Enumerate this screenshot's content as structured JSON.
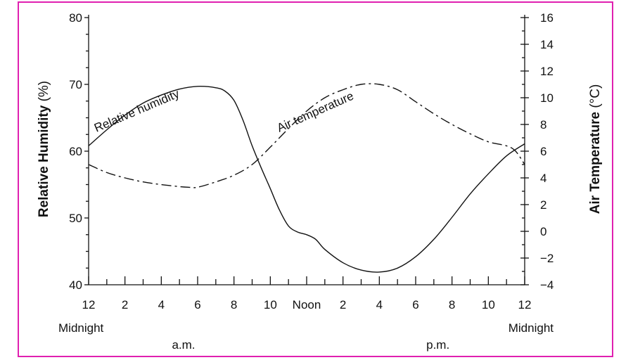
{
  "chart_data": {
    "type": "line",
    "yleft": {
      "label_bold": "Relative Humidity",
      "label_unit": "(%)",
      "ylim": [
        40,
        80
      ],
      "major_ticks": [
        40,
        50,
        60,
        70,
        80
      ],
      "minor_step": 2.5
    },
    "yright": {
      "label_bold": "Air Temperature",
      "label_unit": "(°C)",
      "ylim": [
        -4,
        16
      ],
      "ticks": [
        -4,
        -2,
        0,
        2,
        4,
        6,
        8,
        10,
        12,
        14,
        16
      ]
    },
    "x": {
      "xlim": [
        0,
        24
      ],
      "tick_labels": [
        {
          "x": 0,
          "text": "12"
        },
        {
          "x": 2,
          "text": "2"
        },
        {
          "x": 4,
          "text": "4"
        },
        {
          "x": 6,
          "text": "6"
        },
        {
          "x": 8,
          "text": "8"
        },
        {
          "x": 10,
          "text": "10"
        },
        {
          "x": 12,
          "text": "Noon"
        },
        {
          "x": 14,
          "text": "2"
        },
        {
          "x": 16,
          "text": "4"
        },
        {
          "x": 18,
          "text": "6"
        },
        {
          "x": 20,
          "text": "8"
        },
        {
          "x": 22,
          "text": "10"
        },
        {
          "x": 24,
          "text": "12"
        }
      ],
      "sub_labels": [
        {
          "x": 0,
          "text": "Midnight"
        },
        {
          "x": 24,
          "text": "Midnight"
        }
      ],
      "period_labels": [
        {
          "x": 6,
          "text": "a.m."
        },
        {
          "x": 20,
          "text": "p.m."
        }
      ]
    },
    "series": [
      {
        "name": "Relative humidity",
        "axis": "left",
        "style": "solid",
        "points": [
          [
            0,
            60.8
          ],
          [
            1,
            63.2
          ],
          [
            2,
            65.4
          ],
          [
            3,
            67.2
          ],
          [
            4,
            68.4
          ],
          [
            5,
            69.3
          ],
          [
            6,
            69.7
          ],
          [
            7,
            69.5
          ],
          [
            7.5,
            69
          ],
          [
            8,
            67.6
          ],
          [
            8.5,
            64.6
          ],
          [
            9,
            60.8
          ],
          [
            9.5,
            57.5
          ],
          [
            10,
            54.4
          ],
          [
            10.5,
            51.2
          ],
          [
            11,
            48.8
          ],
          [
            11.5,
            47.9
          ],
          [
            12,
            47.5
          ],
          [
            12.5,
            46.8
          ],
          [
            13,
            45.3
          ],
          [
            14,
            43.3
          ],
          [
            15,
            42.2
          ],
          [
            16,
            41.9
          ],
          [
            17,
            42.5
          ],
          [
            18,
            44.2
          ],
          [
            19,
            46.8
          ],
          [
            20,
            50.1
          ],
          [
            21,
            53.6
          ],
          [
            22,
            56.6
          ],
          [
            23,
            59.3
          ],
          [
            24,
            61.1
          ]
        ],
        "label": {
          "text": "Relative humidity"
        }
      },
      {
        "name": "Air temperature",
        "axis": "right",
        "style": "dashed",
        "points": [
          [
            0,
            5
          ],
          [
            1,
            4.4
          ],
          [
            2,
            4
          ],
          [
            3,
            3.7
          ],
          [
            4,
            3.5
          ],
          [
            5,
            3.35
          ],
          [
            5.5,
            3.3
          ],
          [
            6,
            3.3
          ],
          [
            7,
            3.7
          ],
          [
            8,
            4.2
          ],
          [
            9,
            5
          ],
          [
            10,
            6.3
          ],
          [
            11,
            7.7
          ],
          [
            12,
            9
          ],
          [
            13,
            10
          ],
          [
            14,
            10.6
          ],
          [
            15,
            11
          ],
          [
            16,
            11
          ],
          [
            17,
            10.6
          ],
          [
            18,
            9.7
          ],
          [
            19,
            8.8
          ],
          [
            20,
            8
          ],
          [
            21,
            7.3
          ],
          [
            22,
            6.7
          ],
          [
            23,
            6.4
          ],
          [
            23.5,
            6
          ],
          [
            24,
            5
          ]
        ],
        "label": {
          "text": "Air temperature"
        }
      }
    ],
    "grid": false
  }
}
